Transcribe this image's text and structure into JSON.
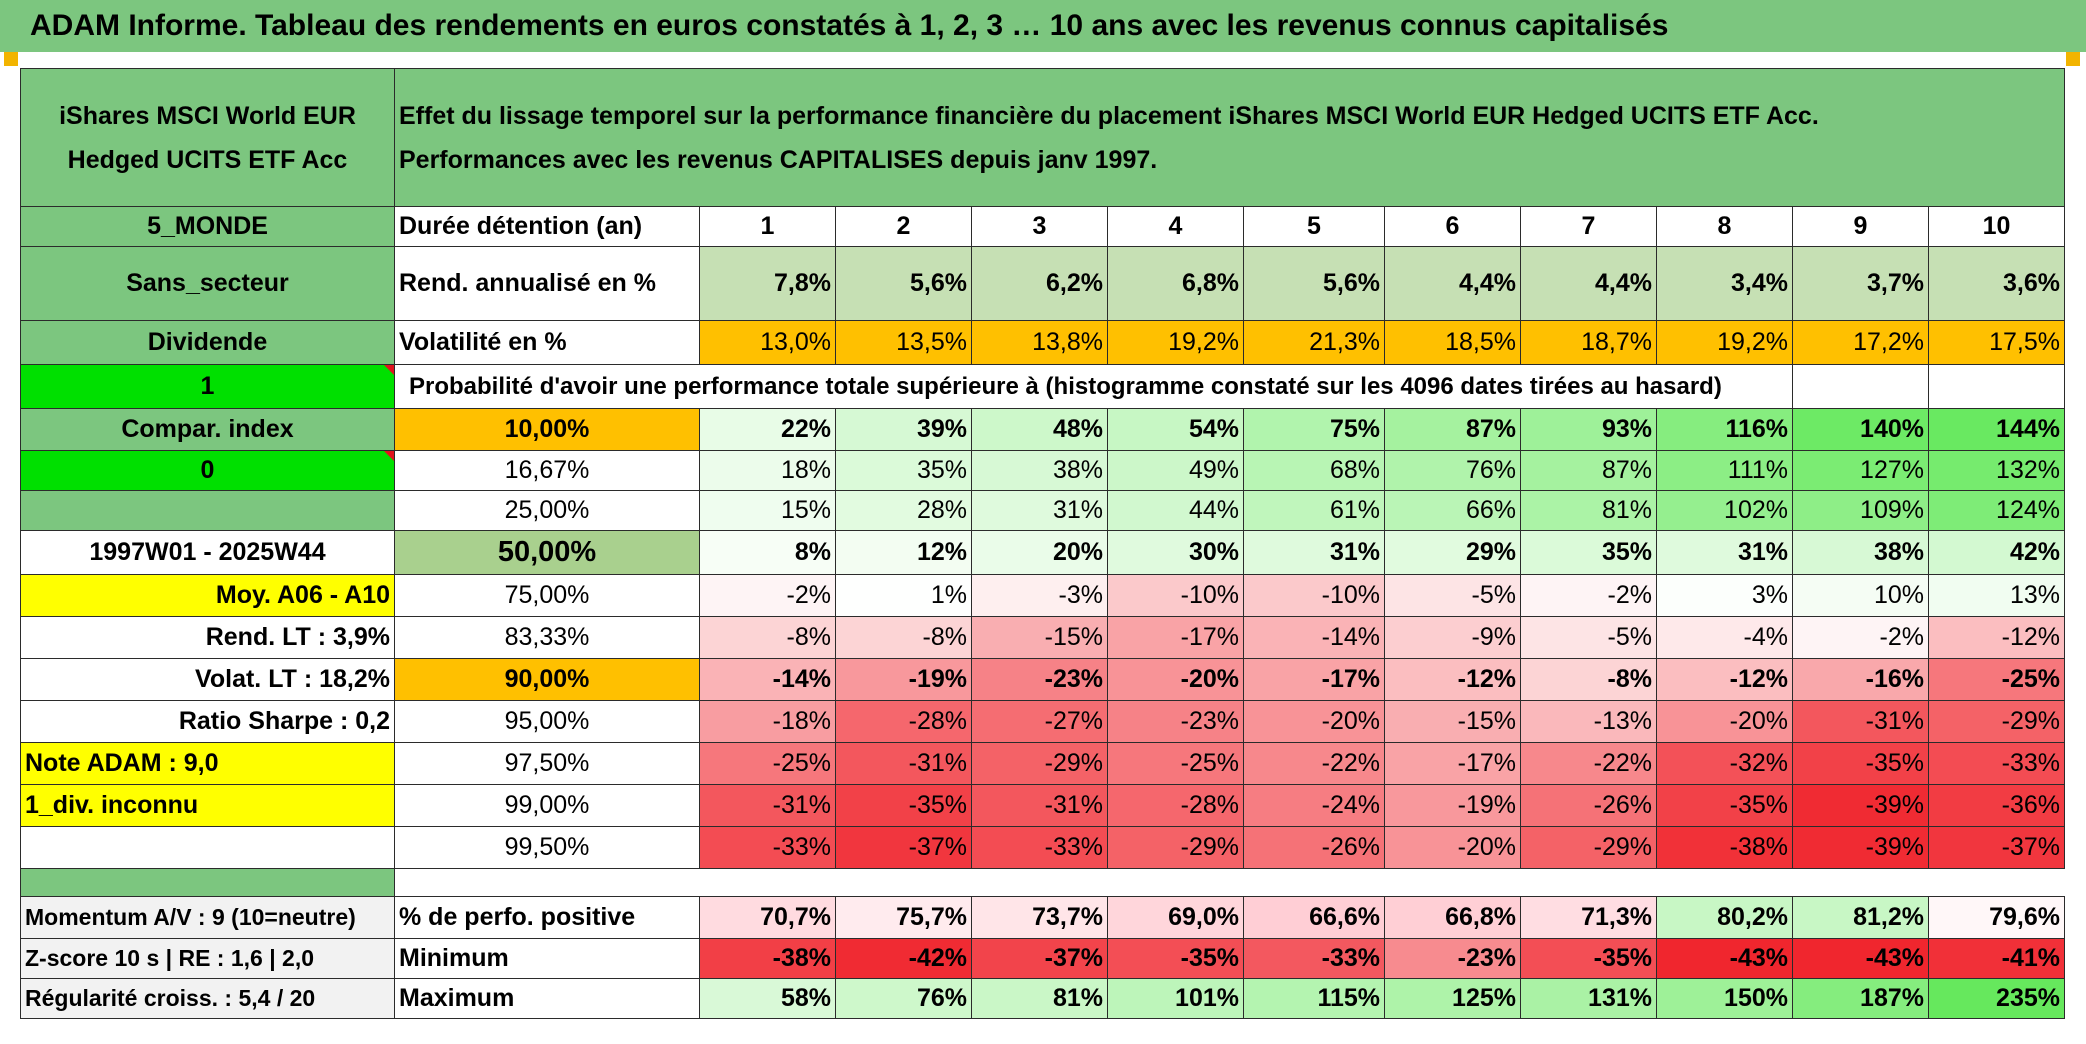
{
  "header": "ADAM Informe. Tableau des rendements en euros constatés à 1, 2, 3 … 10 ans avec les revenus connus capitalisés",
  "fund_name": [
    "iShares MSCI World EUR",
    "Hedged UCITS ETF Acc"
  ],
  "description": [
    "Effet du lissage temporel sur la performance financière du placement iShares MSCI World EUR Hedged UCITS ETF Acc.",
    "Performances avec les revenus CAPITALISES depuis janv 1997."
  ],
  "side": {
    "zone": "5_MONDE",
    "sector": "Sans_secteur",
    "dividend": "Dividende",
    "flag1": "1",
    "compar": "Compar. index",
    "flag0": "0",
    "period": "1997W01 - 2025W44",
    "moy": "Moy. A06 - A10",
    "rend_lt": "Rend. LT :   3,9%",
    "volat_lt": "Volat. LT :   18,2%",
    "sharpe": "Ratio Sharpe :    0,2",
    "note": "Note ADAM : 9,0",
    "div": "1_div. inconnu",
    "momentum": "Momentum A/V : 9 (10=neutre)",
    "zscore": "Z-score 10 s | RE : 1,6 | 2,0",
    "regularite": "Régularité croiss. : 5,4 / 20"
  },
  "colors": {
    "header_green": "#7cc67f",
    "rend_green": "#c6e0b4",
    "vol_orange": "#ffc000",
    "bright_green": "#00e000",
    "yellow": "#ffff00",
    "median_green": "#a9d08e"
  },
  "chart_data": {
    "type": "table",
    "title": "Effet du lissage temporel sur la performance financière du placement iShares MSCI World EUR Hedged UCITS ETF Acc.",
    "duration_label": "Durée détention (an)",
    "durations": [
      "1",
      "2",
      "3",
      "4",
      "5",
      "6",
      "7",
      "8",
      "9",
      "10"
    ],
    "rend_label": "Rend. annualisé en %",
    "rend": [
      "7,8%",
      "5,6%",
      "6,2%",
      "6,8%",
      "5,6%",
      "4,4%",
      "4,4%",
      "3,4%",
      "3,7%",
      "3,6%"
    ],
    "vol_label": "Volatilité en %",
    "vol": [
      "13,0%",
      "13,5%",
      "13,8%",
      "19,2%",
      "21,3%",
      "18,5%",
      "18,7%",
      "19,2%",
      "17,2%",
      "17,5%"
    ],
    "prob_title": "Probabilité d'avoir une performance totale supérieure à (histogramme constaté sur les 4096 dates tirées au hasard)",
    "prob_rows": [
      {
        "label": "10,00%",
        "values": [
          "22%",
          "39%",
          "48%",
          "54%",
          "75%",
          "87%",
          "93%",
          "116%",
          "140%",
          "144%"
        ],
        "nums": [
          22,
          39,
          48,
          54,
          75,
          87,
          93,
          116,
          140,
          144
        ]
      },
      {
        "label": "16,67%",
        "values": [
          "18%",
          "35%",
          "38%",
          "49%",
          "68%",
          "76%",
          "87%",
          "111%",
          "127%",
          "132%"
        ],
        "nums": [
          18,
          35,
          38,
          49,
          68,
          76,
          87,
          111,
          127,
          132
        ]
      },
      {
        "label": "25,00%",
        "values": [
          "15%",
          "28%",
          "31%",
          "44%",
          "61%",
          "66%",
          "81%",
          "102%",
          "109%",
          "124%"
        ],
        "nums": [
          15,
          28,
          31,
          44,
          61,
          66,
          81,
          102,
          109,
          124
        ]
      },
      {
        "label": "50,00%",
        "values": [
          "8%",
          "12%",
          "20%",
          "30%",
          "31%",
          "29%",
          "35%",
          "31%",
          "38%",
          "42%"
        ],
        "nums": [
          8,
          12,
          20,
          30,
          31,
          29,
          35,
          31,
          38,
          42
        ]
      },
      {
        "label": "75,00%",
        "values": [
          "-2%",
          "1%",
          "-3%",
          "-10%",
          "-10%",
          "-5%",
          "-2%",
          "3%",
          "10%",
          "13%"
        ],
        "nums": [
          -2,
          1,
          -3,
          -10,
          -10,
          -5,
          -2,
          3,
          10,
          13
        ]
      },
      {
        "label": "83,33%",
        "values": [
          "-8%",
          "-8%",
          "-15%",
          "-17%",
          "-14%",
          "-9%",
          "-5%",
          "-4%",
          "-2%",
          "-12%"
        ],
        "nums": [
          -8,
          -8,
          -15,
          -17,
          -14,
          -9,
          -5,
          -4,
          -2,
          -12
        ]
      },
      {
        "label": "90,00%",
        "values": [
          "-14%",
          "-19%",
          "-23%",
          "-20%",
          "-17%",
          "-12%",
          "-8%",
          "-12%",
          "-16%",
          "-25%"
        ],
        "nums": [
          -14,
          -19,
          -23,
          -20,
          -17,
          -12,
          -8,
          -12,
          -16,
          -25
        ]
      },
      {
        "label": "95,00%",
        "values": [
          "-18%",
          "-28%",
          "-27%",
          "-23%",
          "-20%",
          "-15%",
          "-13%",
          "-20%",
          "-31%",
          "-29%"
        ],
        "nums": [
          -18,
          -28,
          -27,
          -23,
          -20,
          -15,
          -13,
          -20,
          -31,
          -29
        ]
      },
      {
        "label": "97,50%",
        "values": [
          "-25%",
          "-31%",
          "-29%",
          "-25%",
          "-22%",
          "-17%",
          "-22%",
          "-32%",
          "-35%",
          "-33%"
        ],
        "nums": [
          -25,
          -31,
          -29,
          -25,
          -22,
          -17,
          -22,
          -32,
          -35,
          -33
        ]
      },
      {
        "label": "99,00%",
        "values": [
          "-31%",
          "-35%",
          "-31%",
          "-28%",
          "-24%",
          "-19%",
          "-26%",
          "-35%",
          "-39%",
          "-36%"
        ],
        "nums": [
          -31,
          -35,
          -31,
          -28,
          -24,
          -19,
          -26,
          -35,
          -39,
          -36
        ]
      },
      {
        "label": "99,50%",
        "values": [
          "-33%",
          "-37%",
          "-33%",
          "-29%",
          "-26%",
          "-20%",
          "-29%",
          "-38%",
          "-39%",
          "-37%"
        ],
        "nums": [
          -33,
          -37,
          -33,
          -29,
          -26,
          -20,
          -29,
          -38,
          -39,
          -37
        ]
      }
    ],
    "pos_label": "% de perfo. positive",
    "pos": [
      "70,7%",
      "75,7%",
      "73,7%",
      "69,0%",
      "66,6%",
      "66,8%",
      "71,3%",
      "80,2%",
      "81,2%",
      "79,6%"
    ],
    "pos_nums": [
      70.7,
      75.7,
      73.7,
      69.0,
      66.6,
      66.8,
      71.3,
      80.2,
      81.2,
      79.6
    ],
    "min_label": "Minimum",
    "min": [
      "-38%",
      "-42%",
      "-37%",
      "-35%",
      "-33%",
      "-23%",
      "-35%",
      "-43%",
      "-43%",
      "-41%"
    ],
    "min_nums": [
      -38,
      -42,
      -37,
      -35,
      -33,
      -23,
      -35,
      -43,
      -43,
      -41
    ],
    "max_label": "Maximum",
    "max": [
      "58%",
      "76%",
      "81%",
      "101%",
      "115%",
      "125%",
      "131%",
      "150%",
      "187%",
      "235%"
    ],
    "max_nums": [
      58,
      76,
      81,
      101,
      115,
      125,
      131,
      150,
      187,
      235
    ]
  }
}
